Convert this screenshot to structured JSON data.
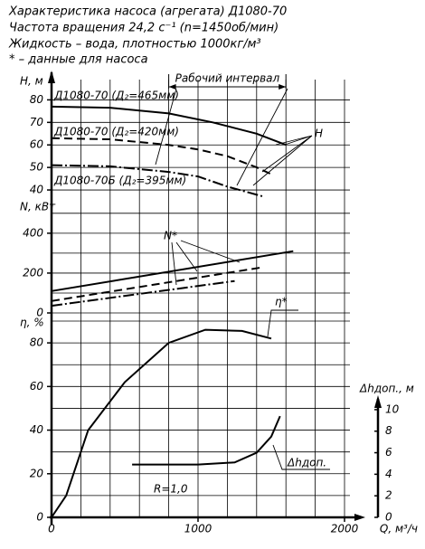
{
  "header": {
    "lines": [
      "Характеристика насоса (агрегата) Д1080-70",
      "Частота вращения 24,2 с⁻¹ (n=1450об/мин)",
      "Жидкость – вода, плотностью 1000кг/м³",
      "* – данные для насоса"
    ]
  },
  "chart_data": [
    {
      "type": "line",
      "ylabel": "H, м",
      "xlim": [
        0,
        2000
      ],
      "ylim": [
        36,
        89
      ],
      "yticks": [
        40,
        50,
        60,
        70,
        80
      ],
      "xgrid": [
        200,
        400,
        600,
        800,
        1000,
        1200,
        1400,
        1600,
        1800,
        2000
      ],
      "working_interval": {
        "label": "Рабочий интервал",
        "range": [
          800,
          1600
        ]
      },
      "annotations": [
        "H"
      ],
      "series": [
        {
          "name": "Д1080-70 (Д₂=465мм)",
          "color": "#000000",
          "dash": "solid",
          "x": [
            0,
            400,
            800,
            1100,
            1400,
            1600
          ],
          "values": [
            77,
            76.5,
            74,
            70,
            65,
            60
          ]
        },
        {
          "name": "Д1080-70 (Д₂=420мм)",
          "color": "#000000",
          "dash": "dashed",
          "x": [
            0,
            400,
            800,
            1000,
            1200,
            1400,
            1500
          ],
          "values": [
            63,
            62.5,
            60,
            58,
            55,
            50,
            47
          ]
        },
        {
          "name": "Д1080-70Б (Д₂=395мм)",
          "color": "#000000",
          "dash": "dashdot",
          "x": [
            0,
            400,
            800,
            1000,
            1200,
            1450
          ],
          "values": [
            51,
            50.5,
            48,
            46,
            41.5,
            37
          ]
        }
      ]
    },
    {
      "type": "line",
      "ylabel": "N, кВт",
      "xlim": [
        0,
        2000
      ],
      "ylim": [
        0,
        540
      ],
      "yticks": [
        0,
        200,
        400
      ],
      "ygrid": [
        0,
        100,
        200,
        300,
        400,
        500
      ],
      "annotations": [
        "N*"
      ],
      "series": [
        {
          "color": "#000000",
          "dash": "solid",
          "x": [
            0,
            1650
          ],
          "values": [
            110,
            310
          ]
        },
        {
          "color": "#000000",
          "dash": "dashed",
          "x": [
            0,
            1450
          ],
          "values": [
            60,
            230
          ]
        },
        {
          "color": "#000000",
          "dash": "dashdot",
          "x": [
            0,
            1250
          ],
          "values": [
            36,
            160
          ]
        }
      ]
    },
    {
      "type": "line",
      "ylabel": "η, %",
      "xlabel": "Q, м³/ч",
      "xlim": [
        0,
        2000
      ],
      "xticks": [
        0,
        1000,
        2000
      ],
      "ylim": [
        0,
        90
      ],
      "yticks": [
        0,
        20,
        40,
        60,
        80
      ],
      "ygrid": [
        0,
        10,
        20,
        30,
        40,
        50,
        60,
        70,
        80,
        90
      ],
      "y2label": "Δhдоп., м",
      "y2lim": [
        0,
        11
      ],
      "y2ticks": [
        0,
        2,
        4,
        6,
        8,
        10
      ],
      "annotations": [
        "R=1,0"
      ],
      "series": [
        {
          "name": "η*",
          "color": "#000000",
          "dash": "solid",
          "x": [
            0,
            100,
            250,
            500,
            800,
            1050,
            1300,
            1500
          ],
          "values": [
            0,
            10,
            40,
            62,
            80,
            86,
            85.5,
            82
          ]
        },
        {
          "name": "Δhдоп.",
          "color": "#000000",
          "dash": "solid",
          "axis": "y2",
          "x": [
            550,
            1000,
            1250,
            1400,
            1500,
            1560
          ],
          "values": [
            4.9,
            4.9,
            5.1,
            6,
            7.5,
            9.4
          ]
        }
      ]
    }
  ]
}
